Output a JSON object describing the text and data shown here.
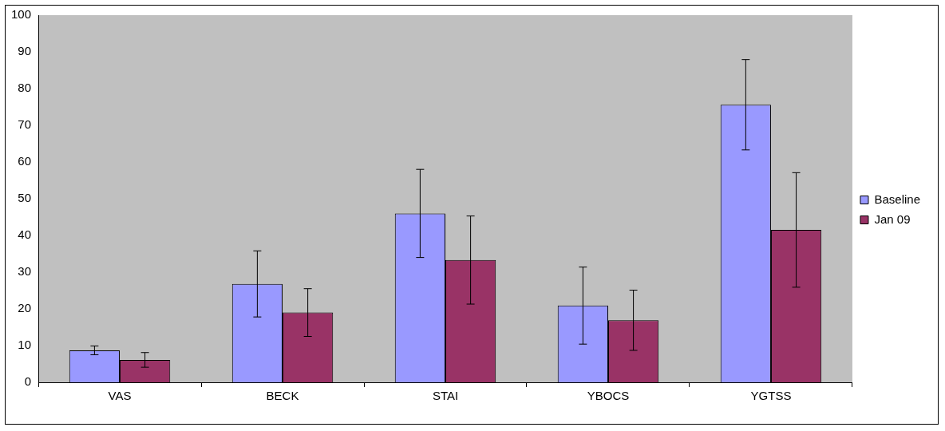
{
  "chart_data": {
    "type": "bar",
    "categories": [
      "VAS",
      "BECK",
      "STAI",
      "YBOCS",
      "YGTSS"
    ],
    "series": [
      {
        "name": "Baseline",
        "color": "#9999ff",
        "values": [
          8.7,
          26.8,
          46,
          20.9,
          75.6
        ],
        "errors": [
          1.2,
          9,
          12,
          10.5,
          12.3
        ]
      },
      {
        "name": "Jan 09",
        "color": "#993366",
        "values": [
          6.1,
          19,
          33.3,
          16.9,
          41.5
        ],
        "errors": [
          2,
          6.5,
          12,
          8.2,
          15.6
        ]
      }
    ],
    "ylim": [
      0,
      100
    ],
    "yticks": [
      0,
      10,
      20,
      30,
      40,
      50,
      60,
      70,
      80,
      90,
      100
    ],
    "legend": "right"
  }
}
